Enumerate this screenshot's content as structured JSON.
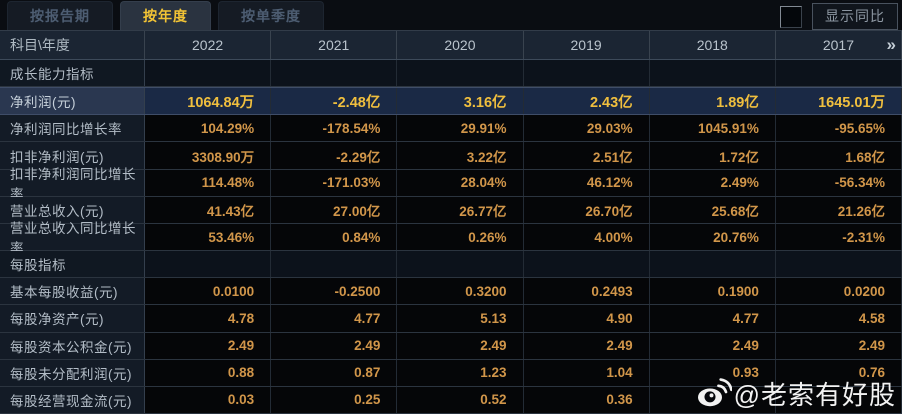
{
  "tabs": [
    {
      "label": "按报告期",
      "active": false
    },
    {
      "label": "按年度",
      "active": true
    },
    {
      "label": "按单季度",
      "active": false
    }
  ],
  "controls": {
    "show_yoy_label": "显示同比",
    "checkbox_checked": false
  },
  "table": {
    "corner_label": "科目\\年度",
    "years": [
      "2022",
      "2021",
      "2020",
      "2019",
      "2018",
      "2017"
    ],
    "more_icon": "»",
    "rows": [
      {
        "type": "section",
        "label": "成长能力指标"
      },
      {
        "type": "data",
        "label": "净利润(元)",
        "highlight": true,
        "values": [
          "1064.84万",
          "-2.48亿",
          "3.16亿",
          "2.43亿",
          "1.89亿",
          "1645.01万"
        ]
      },
      {
        "type": "data",
        "label": "净利润同比增长率",
        "values": [
          "104.29%",
          "-178.54%",
          "29.91%",
          "29.03%",
          "1045.91%",
          "-95.65%"
        ]
      },
      {
        "type": "data",
        "label": "扣非净利润(元)",
        "values": [
          "3308.90万",
          "-2.29亿",
          "3.22亿",
          "2.51亿",
          "1.72亿",
          "1.68亿"
        ]
      },
      {
        "type": "data",
        "label": "扣非净利润同比增长率",
        "values": [
          "114.48%",
          "-171.03%",
          "28.04%",
          "46.12%",
          "2.49%",
          "-56.34%"
        ]
      },
      {
        "type": "data",
        "label": "营业总收入(元)",
        "values": [
          "41.43亿",
          "27.00亿",
          "26.77亿",
          "26.70亿",
          "25.68亿",
          "21.26亿"
        ]
      },
      {
        "type": "data",
        "label": "营业总收入同比增长率",
        "values": [
          "53.46%",
          "0.84%",
          "0.26%",
          "4.00%",
          "20.76%",
          "-2.31%"
        ]
      },
      {
        "type": "section",
        "label": "每股指标"
      },
      {
        "type": "data",
        "label": "基本每股收益(元)",
        "values": [
          "0.0100",
          "-0.2500",
          "0.3200",
          "0.2493",
          "0.1900",
          "0.0200"
        ]
      },
      {
        "type": "data",
        "label": "每股净资产(元)",
        "values": [
          "4.78",
          "4.77",
          "5.13",
          "4.90",
          "4.77",
          "4.58"
        ]
      },
      {
        "type": "data",
        "label": "每股资本公积金(元)",
        "values": [
          "2.49",
          "2.49",
          "2.49",
          "2.49",
          "2.49",
          "2.49"
        ]
      },
      {
        "type": "data",
        "label": "每股未分配利润(元)",
        "values": [
          "0.88",
          "0.87",
          "1.23",
          "1.04",
          "0.93",
          "0.76"
        ]
      },
      {
        "type": "data",
        "label": "每股经营现金流(元)",
        "values": [
          "0.03",
          "0.25",
          "0.52",
          "0.36",
          "",
          ""
        ]
      }
    ]
  },
  "watermark": {
    "text": "@老索有好股"
  },
  "colors": {
    "accent_gold": "#d1964a",
    "highlight_gold": "#f0bf3e",
    "active_tab_text": "#f3c435",
    "highlight_row_bg": "#1a2945",
    "header_bg": "#1b2533",
    "label_col_bg": "#131b26",
    "value_bg": "#050608"
  }
}
